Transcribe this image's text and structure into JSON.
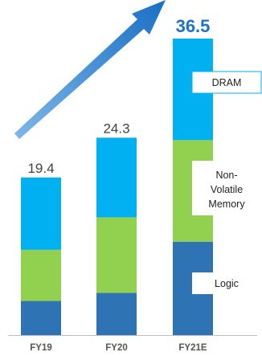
{
  "chart_data": {
    "type": "bar",
    "stacked": true,
    "categories": [
      "FY19",
      "FY20",
      "FY21E"
    ],
    "totals": [
      "19.4",
      "24.3",
      "36.5"
    ],
    "highlight_total_index": 2,
    "series": [
      {
        "name": "Logic",
        "values": [
          4.2,
          5.2,
          11.5
        ],
        "color": "#2e74b5"
      },
      {
        "name": "Non-Volatile Memory",
        "values": [
          6.3,
          9.3,
          12.5
        ],
        "color": "#92d050"
      },
      {
        "name": "DRAM",
        "values": [
          8.9,
          9.8,
          12.5
        ],
        "color": "#00b0f0"
      }
    ],
    "segment_labels": [
      "DRAM",
      "Non-Volatile Memory",
      "Logic"
    ],
    "ylim": [
      0,
      36.5
    ],
    "grid": false,
    "trend_arrow": true,
    "colors": {
      "arrow": "#1a73c8",
      "highlight_text": "#1a73c8",
      "label_box_border": "#00b0f0"
    }
  }
}
